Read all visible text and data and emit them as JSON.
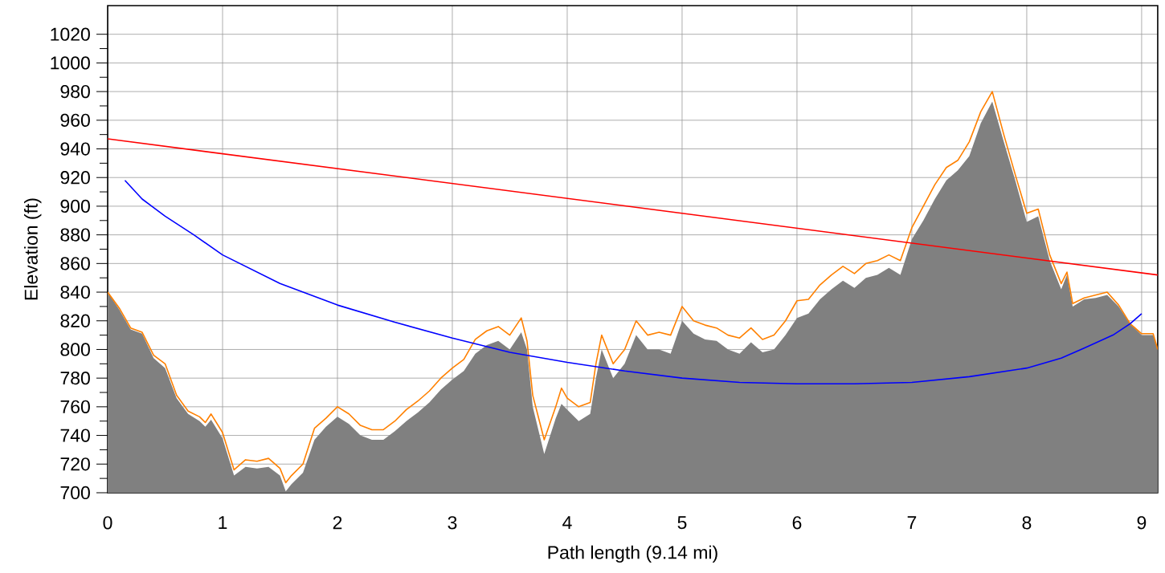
{
  "chart_data": {
    "type": "line",
    "xlabel": "Path length (9.14 mi)",
    "ylabel": "Elevation (ft)",
    "xlim": [
      0,
      9.14
    ],
    "xticks": [
      0,
      1,
      2,
      3,
      4,
      5,
      6,
      7,
      8,
      9
    ],
    "ylim": [
      700,
      1040
    ],
    "yticks": [
      700,
      720,
      740,
      760,
      780,
      800,
      820,
      840,
      860,
      880,
      900,
      920,
      940,
      960,
      980,
      1000,
      1020
    ],
    "grid": true,
    "marker": "none",
    "line_style": "solid",
    "series": [
      {
        "type": "area",
        "color": "#808080",
        "x": [
          0,
          0.1,
          0.2,
          0.3,
          0.4,
          0.5,
          0.6,
          0.7,
          0.8,
          0.85,
          0.9,
          1.0,
          1.1,
          1.2,
          1.3,
          1.4,
          1.5,
          1.55,
          1.6,
          1.7,
          1.8,
          1.9,
          2.0,
          2.1,
          2.2,
          2.3,
          2.4,
          2.5,
          2.6,
          2.7,
          2.8,
          2.9,
          3.0,
          3.1,
          3.2,
          3.3,
          3.4,
          3.5,
          3.6,
          3.65,
          3.7,
          3.8,
          3.9,
          3.95,
          4.0,
          4.1,
          4.2,
          4.25,
          4.3,
          4.4,
          4.5,
          4.6,
          4.7,
          4.8,
          4.9,
          5.0,
          5.1,
          5.2,
          5.3,
          5.4,
          5.5,
          5.6,
          5.7,
          5.8,
          5.9,
          6.0,
          6.1,
          6.2,
          6.3,
          6.4,
          6.5,
          6.6,
          6.7,
          6.8,
          6.9,
          7.0,
          7.1,
          7.2,
          7.3,
          7.4,
          7.5,
          7.6,
          7.7,
          7.8,
          7.9,
          8.0,
          8.1,
          8.2,
          8.3,
          8.35,
          8.4,
          8.5,
          8.6,
          8.7,
          8.8,
          8.9,
          9.0,
          9.1,
          9.14
        ],
        "values": [
          840,
          828,
          814,
          811,
          794,
          787,
          766,
          755,
          750,
          746,
          751,
          738,
          712,
          718,
          717,
          718,
          712,
          701,
          706,
          714,
          737,
          746,
          753,
          748,
          740,
          737,
          737,
          743,
          750,
          756,
          763,
          772,
          779,
          785,
          797,
          803,
          806,
          800,
          812,
          800,
          760,
          727,
          752,
          762,
          758,
          750,
          755,
          780,
          800,
          780,
          790,
          810,
          800,
          800,
          797,
          820,
          811,
          807,
          806,
          800,
          797,
          805,
          798,
          800,
          810,
          822,
          825,
          835,
          842,
          848,
          843,
          850,
          852,
          857,
          852,
          877,
          890,
          905,
          918,
          925,
          935,
          958,
          973,
          945,
          918,
          889,
          893,
          862,
          842,
          852,
          830,
          835,
          836,
          838,
          830,
          818,
          810,
          810,
          800
        ]
      },
      {
        "color": "#ff8000",
        "x": [
          0,
          0.1,
          0.2,
          0.3,
          0.4,
          0.5,
          0.6,
          0.7,
          0.8,
          0.85,
          0.9,
          1.0,
          1.1,
          1.2,
          1.3,
          1.4,
          1.5,
          1.55,
          1.6,
          1.7,
          1.8,
          1.9,
          2.0,
          2.1,
          2.2,
          2.3,
          2.4,
          2.5,
          2.6,
          2.7,
          2.8,
          2.9,
          3.0,
          3.1,
          3.2,
          3.3,
          3.4,
          3.5,
          3.6,
          3.65,
          3.7,
          3.8,
          3.9,
          3.95,
          4.0,
          4.1,
          4.2,
          4.25,
          4.3,
          4.4,
          4.5,
          4.6,
          4.7,
          4.8,
          4.9,
          5.0,
          5.1,
          5.2,
          5.3,
          5.4,
          5.5,
          5.6,
          5.7,
          5.8,
          5.9,
          6.0,
          6.1,
          6.2,
          6.3,
          6.4,
          6.5,
          6.6,
          6.7,
          6.8,
          6.9,
          7.0,
          7.1,
          7.2,
          7.3,
          7.4,
          7.5,
          7.6,
          7.7,
          7.8,
          7.9,
          8.0,
          8.1,
          8.2,
          8.3,
          8.35,
          8.4,
          8.5,
          8.6,
          8.7,
          8.8,
          8.9,
          9.0,
          9.1,
          9.14
        ],
        "values": [
          840,
          829,
          815,
          812,
          796,
          790,
          768,
          757,
          753,
          749,
          755,
          742,
          716,
          723,
          722,
          724,
          717,
          707,
          712,
          720,
          745,
          752,
          760,
          755,
          747,
          744,
          744,
          750,
          758,
          764,
          771,
          780,
          787,
          793,
          807,
          813,
          816,
          810,
          822,
          806,
          768,
          737,
          760,
          773,
          766,
          760,
          763,
          790,
          810,
          790,
          800,
          820,
          810,
          812,
          810,
          830,
          820,
          817,
          815,
          810,
          808,
          815,
          807,
          810,
          820,
          834,
          835,
          845,
          852,
          858,
          853,
          860,
          862,
          866,
          862,
          885,
          900,
          915,
          927,
          932,
          945,
          966,
          980,
          950,
          922,
          895,
          898,
          866,
          846,
          854,
          832,
          836,
          838,
          840,
          831,
          818,
          811,
          811,
          800
        ]
      },
      {
        "color": "#ff0000",
        "x": [
          0,
          9.14
        ],
        "values": [
          947,
          852
        ]
      },
      {
        "color": "#0000ff",
        "x": [
          0.15,
          0.3,
          0.5,
          0.75,
          1.0,
          1.5,
          2.0,
          2.5,
          3.0,
          3.5,
          4.0,
          4.5,
          5.0,
          5.5,
          6.0,
          6.5,
          7.0,
          7.5,
          8.0,
          8.3,
          8.5,
          8.75,
          8.9,
          9.0
        ],
        "values": [
          918,
          905,
          893,
          880,
          866,
          846,
          831,
          819,
          808,
          798,
          791,
          785,
          780,
          777,
          776,
          776,
          777,
          781,
          787,
          794,
          801,
          810,
          818,
          825
        ]
      }
    ]
  }
}
